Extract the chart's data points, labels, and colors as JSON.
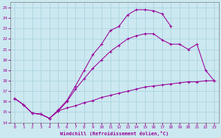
{
  "xlabel": "Windchill (Refroidissement éolien,°C)",
  "bg_color": "#cce8f0",
  "grid_color": "#aad4e0",
  "line_color": "#990099",
  "xlim": [
    -0.5,
    23.5
  ],
  "ylim": [
    14,
    25.5
  ],
  "xticks": [
    0,
    1,
    2,
    3,
    4,
    5,
    6,
    7,
    8,
    9,
    10,
    11,
    12,
    13,
    14,
    15,
    16,
    17,
    18,
    19,
    20,
    21,
    22,
    23
  ],
  "yticks": [
    14,
    15,
    16,
    17,
    18,
    19,
    20,
    21,
    22,
    23,
    24,
    25
  ],
  "line1_x": [
    0,
    1,
    2,
    3,
    4,
    5,
    6,
    7,
    8,
    9,
    10,
    11,
    12,
    13,
    14,
    15,
    16,
    17,
    18
  ],
  "line1_y": [
    16.3,
    15.7,
    14.9,
    14.8,
    14.4,
    15.2,
    16.1,
    17.5,
    19.0,
    20.5,
    21.5,
    22.8,
    23.2,
    24.3,
    24.8,
    24.8,
    24.7,
    24.4,
    23.2
  ],
  "line2_x": [
    0,
    1,
    2,
    3,
    4,
    5,
    6,
    7,
    8,
    9,
    10,
    11,
    12,
    13,
    14,
    15,
    16,
    17,
    18,
    19,
    20,
    21,
    22,
    23
  ],
  "line2_y": [
    16.3,
    15.7,
    14.9,
    14.8,
    14.4,
    15.1,
    15.4,
    15.6,
    15.9,
    16.1,
    16.4,
    16.6,
    16.8,
    17.0,
    17.2,
    17.4,
    17.5,
    17.6,
    17.7,
    17.8,
    17.9,
    17.9,
    18.0,
    18.0
  ],
  "line3_x": [
    0,
    1,
    2,
    3,
    4,
    5,
    6,
    7,
    8,
    9,
    10,
    11,
    12,
    13,
    14,
    15,
    16,
    17,
    18,
    19,
    20,
    21,
    22,
    23
  ],
  "line3_y": [
    16.3,
    15.7,
    14.9,
    14.8,
    14.4,
    15.1,
    16.0,
    17.2,
    18.2,
    19.2,
    20.0,
    20.8,
    21.4,
    22.0,
    22.3,
    22.5,
    22.5,
    21.9,
    21.5,
    21.5,
    21.0,
    21.5,
    19.0,
    18.0
  ]
}
